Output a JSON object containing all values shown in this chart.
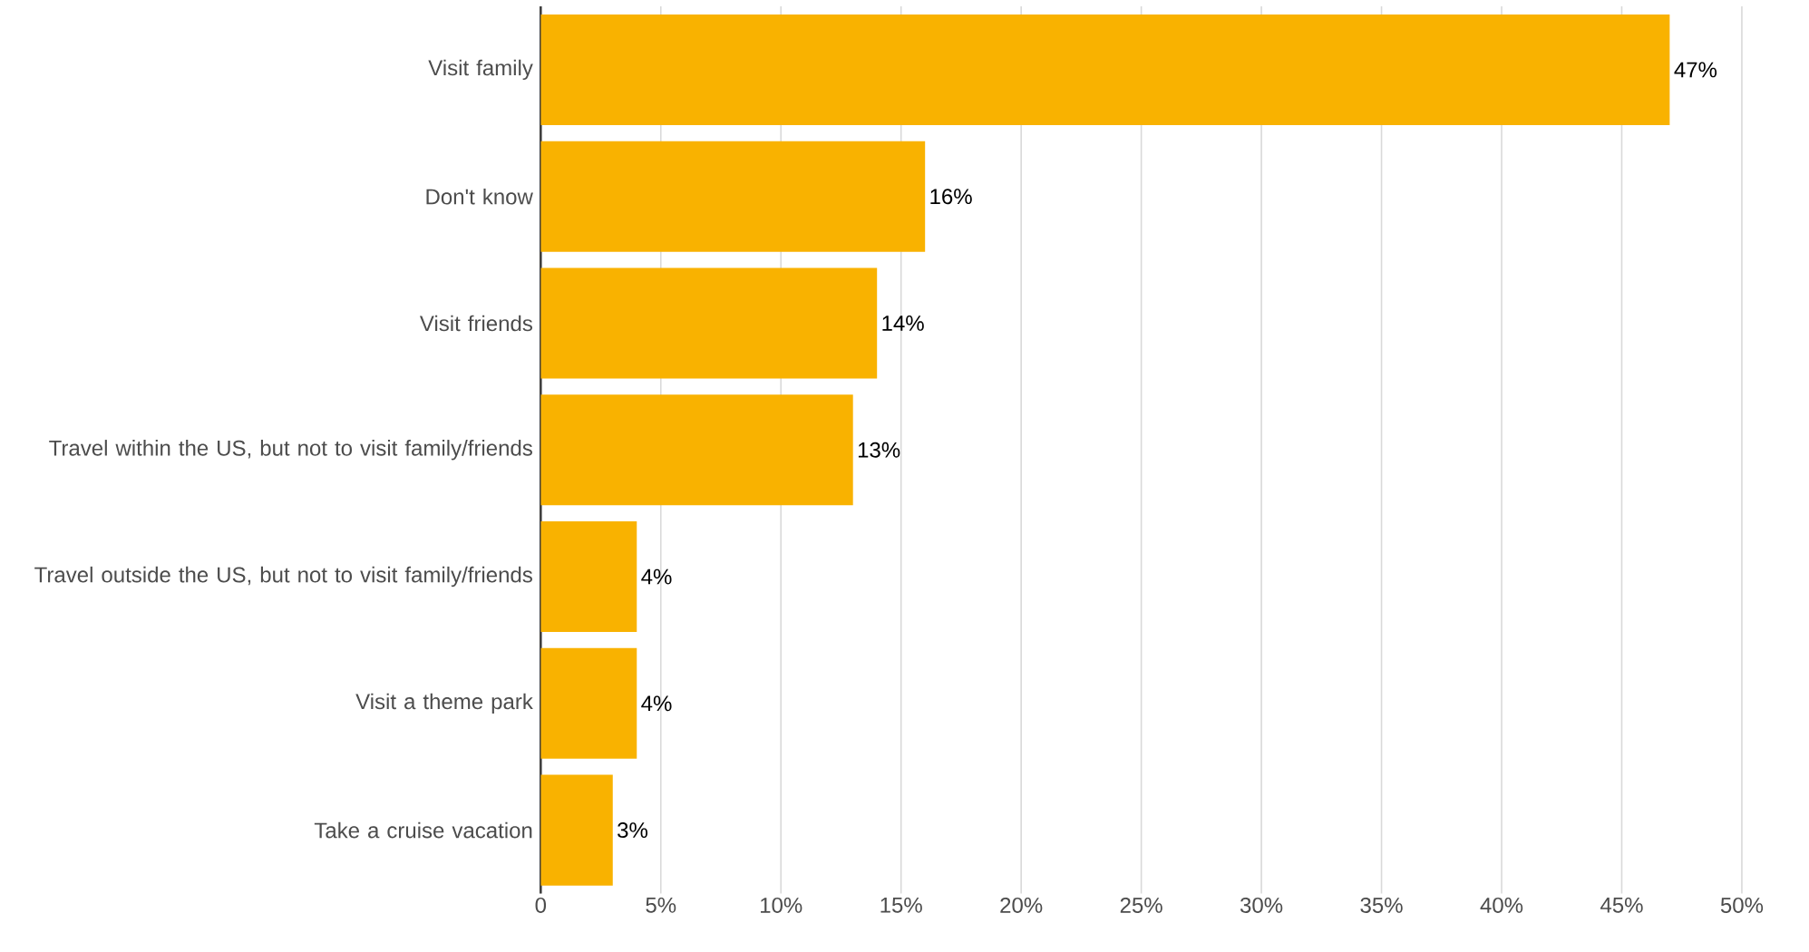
{
  "chart_data": {
    "type": "bar",
    "orientation": "horizontal",
    "categories": [
      "Visit family",
      "Don't know",
      "Visit friends",
      "Travel within the US, but not to visit family/friends",
      "Travel outside the US, but not to visit family/friends",
      "Visit a theme park",
      "Take a cruise vacation"
    ],
    "values": [
      47,
      16,
      14,
      13,
      4,
      4,
      3
    ],
    "value_labels": [
      "47%",
      "16%",
      "14%",
      "13%",
      "4%",
      "4%",
      "3%"
    ],
    "color": "#f9b200",
    "xlim": [
      0,
      50
    ],
    "xticks": [
      {
        "value": 0,
        "label": "0"
      },
      {
        "value": 5,
        "label": "5%"
      },
      {
        "value": 10,
        "label": "10%"
      },
      {
        "value": 15,
        "label": "15%"
      },
      {
        "value": 20,
        "label": "20%"
      },
      {
        "value": 25,
        "label": "25%"
      },
      {
        "value": 30,
        "label": "30%"
      },
      {
        "value": 35,
        "label": "35%"
      },
      {
        "value": 40,
        "label": "40%"
      },
      {
        "value": 45,
        "label": "45%"
      },
      {
        "value": 50,
        "label": "50%"
      }
    ],
    "grid": "x"
  }
}
